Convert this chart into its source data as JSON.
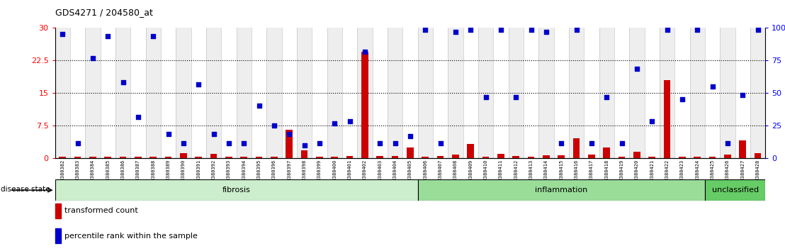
{
  "title": "GDS4271 / 204580_at",
  "samples": [
    "GSM380382",
    "GSM380383",
    "GSM380384",
    "GSM380385",
    "GSM380386",
    "GSM380387",
    "GSM380388",
    "GSM380389",
    "GSM380390",
    "GSM380391",
    "GSM380392",
    "GSM380393",
    "GSM380394",
    "GSM380395",
    "GSM380396",
    "GSM380397",
    "GSM380398",
    "GSM380399",
    "GSM380400",
    "GSM380401",
    "GSM380402",
    "GSM380403",
    "GSM380404",
    "GSM380405",
    "GSM380406",
    "GSM380407",
    "GSM380408",
    "GSM380409",
    "GSM380410",
    "GSM380411",
    "GSM380412",
    "GSM380413",
    "GSM380414",
    "GSM380415",
    "GSM380416",
    "GSM380417",
    "GSM380418",
    "GSM380419",
    "GSM380420",
    "GSM380421",
    "GSM380422",
    "GSM380423",
    "GSM380424",
    "GSM380425",
    "GSM380426",
    "GSM380427",
    "GSM380428"
  ],
  "transformed_count": [
    0.3,
    0.4,
    0.4,
    0.4,
    0.4,
    0.4,
    0.4,
    0.4,
    1.2,
    0.4,
    0.9,
    0.4,
    0.4,
    0.4,
    0.4,
    6.5,
    1.8,
    0.3,
    0.4,
    0.5,
    24.5,
    0.5,
    0.5,
    2.5,
    0.3,
    0.5,
    0.8,
    3.2,
    0.4,
    0.9,
    0.5,
    0.4,
    0.7,
    0.6,
    4.5,
    0.8,
    2.5,
    0.4,
    1.5,
    0.4,
    18.0,
    0.4,
    0.4,
    0.4,
    0.8,
    4.0,
    1.2
  ],
  "percentile_rank": [
    28.5,
    3.5,
    23.0,
    28.0,
    17.5,
    9.5,
    28.0,
    5.5,
    3.5,
    17.0,
    5.5,
    3.5,
    3.5,
    12.0,
    7.5,
    5.5,
    3.0,
    3.5,
    8.0,
    8.5,
    24.5,
    3.5,
    3.5,
    5.0,
    29.5,
    3.5,
    29.0,
    29.5,
    14.0,
    29.5,
    14.0,
    29.5,
    29.0,
    3.5,
    29.5,
    3.5,
    14.0,
    3.5,
    20.5,
    8.5,
    29.5,
    13.5,
    29.5,
    16.5,
    3.5,
    14.5,
    29.5
  ],
  "disease_groups": [
    {
      "label": "fibrosis",
      "start": 0,
      "end": 24,
      "color": "#cceecc"
    },
    {
      "label": "inflammation",
      "start": 24,
      "end": 43,
      "color": "#99dd99"
    },
    {
      "label": "unclassified",
      "start": 43,
      "end": 47,
      "color": "#66cc66"
    }
  ],
  "bar_color": "#cc0000",
  "dot_color": "#0000cc",
  "left_yticks": [
    0,
    7.5,
    15,
    22.5,
    30
  ],
  "left_ylabels": [
    "0",
    "7.5",
    "15",
    "22.5",
    "30"
  ],
  "right_ylabels": [
    "0",
    "25",
    "50",
    "75",
    "100%"
  ],
  "ylim": [
    0,
    30
  ],
  "legend_bar_label": "transformed count",
  "legend_dot_label": "percentile rank within the sample"
}
